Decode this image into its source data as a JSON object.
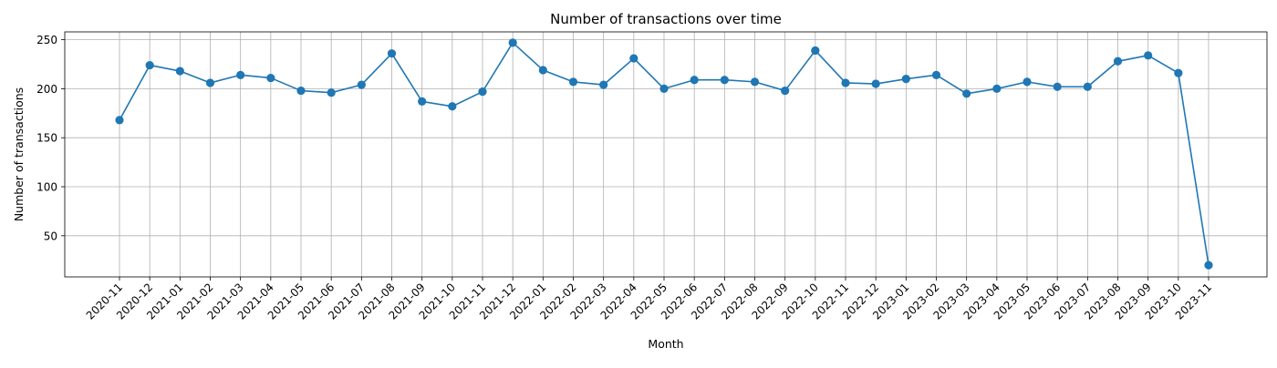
{
  "chart_data": {
    "type": "line",
    "title": "Number of transactions over time",
    "xlabel": "Month",
    "ylabel": "Number of transactions",
    "categories": [
      "2020-11",
      "2020-12",
      "2021-01",
      "2021-02",
      "2021-03",
      "2021-04",
      "2021-05",
      "2021-06",
      "2021-07",
      "2021-08",
      "2021-09",
      "2021-10",
      "2021-11",
      "2021-12",
      "2022-01",
      "2022-02",
      "2022-03",
      "2022-04",
      "2022-05",
      "2022-06",
      "2022-07",
      "2022-08",
      "2022-09",
      "2022-10",
      "2022-11",
      "2022-12",
      "2023-01",
      "2023-02",
      "2023-03",
      "2023-04",
      "2023-05",
      "2023-06",
      "2023-07",
      "2023-08",
      "2023-09",
      "2023-10",
      "2023-11"
    ],
    "series": [
      {
        "values": [
          168,
          224,
          218,
          206,
          214,
          211,
          198,
          196,
          204,
          236,
          187,
          182,
          197,
          247,
          219,
          207,
          204,
          231,
          200,
          209,
          209,
          207,
          198,
          239,
          206,
          205,
          210,
          214,
          195,
          200,
          207,
          202,
          202,
          228,
          234,
          216,
          20
        ],
        "color": "#1f77b4",
        "marker": "circle"
      }
    ],
    "yticks": [
      50,
      100,
      150,
      200,
      250
    ],
    "ylim": [
      8,
      258
    ],
    "grid": true,
    "x_tick_rotation": 45
  }
}
